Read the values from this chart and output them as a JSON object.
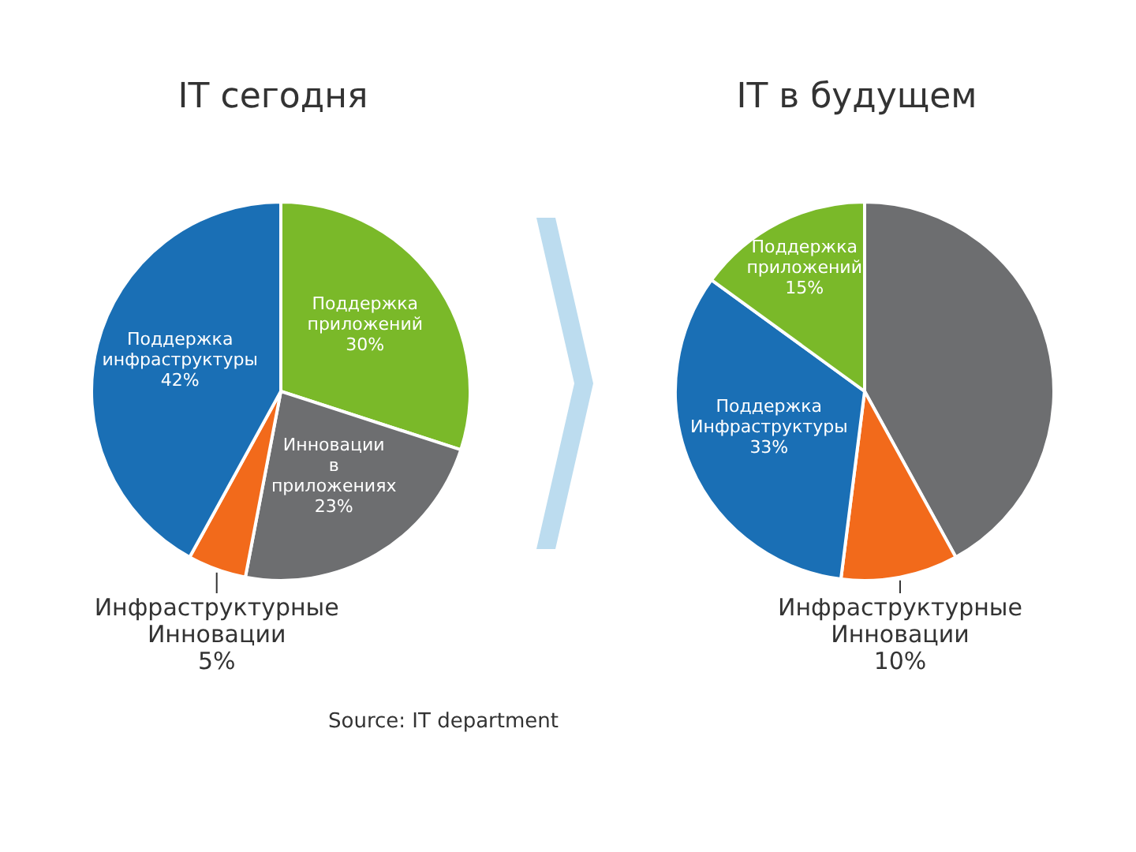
{
  "chart_data": [
    {
      "type": "pie",
      "title": "IT сегодня",
      "categories": [
        "Поддержка приложений",
        "Инновации в приложениях",
        "Инфраструктурные Инновации",
        "Поддержка инфраструктуры"
      ],
      "values": [
        30,
        23,
        5,
        42
      ],
      "value_labels": [
        "30%",
        "23%",
        "5%",
        "42%"
      ],
      "colors": [
        "#7ab929",
        "#6d6e70",
        "#f26a1b",
        "#1a6fb5"
      ],
      "annotations": [
        "Source: IT department"
      ]
    },
    {
      "type": "pie",
      "title": "IT в будущем",
      "categories": [
        null,
        "Инфраструктурные Инновации",
        "Поддержка Инфраструктуры",
        "Поддержка приложений"
      ],
      "values": [
        42,
        10,
        33,
        15
      ],
      "value_labels": [
        null,
        "10%",
        "33%",
        "15%"
      ],
      "colors": [
        "#6d6e70",
        "#f26a1b",
        "#1a6fb5",
        "#7ab929"
      ]
    }
  ]
}
